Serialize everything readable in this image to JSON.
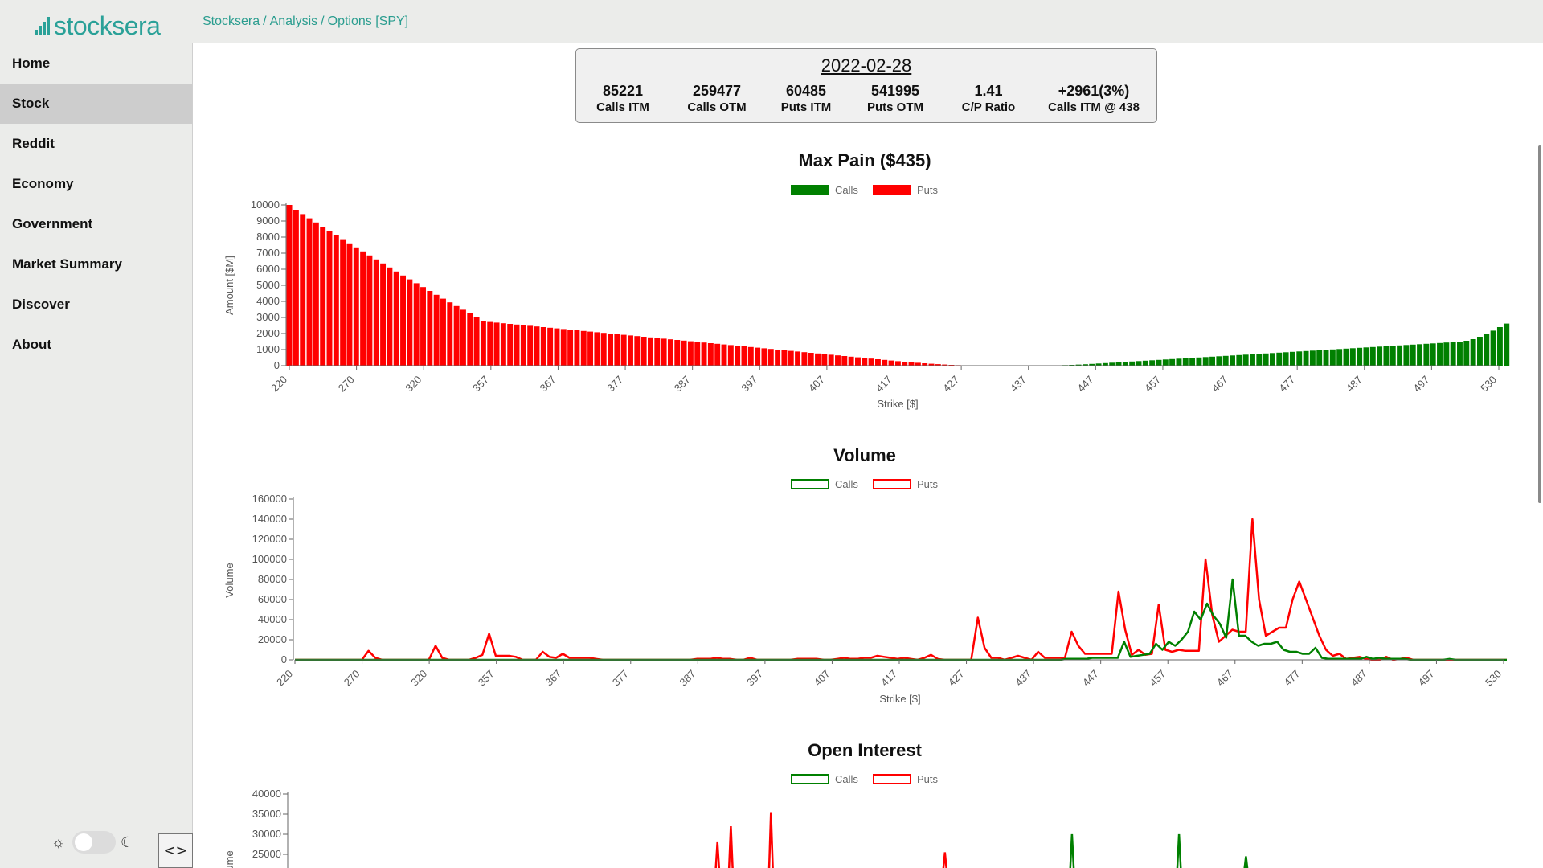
{
  "app": {
    "logo_text": "stocksera",
    "logo_icon": "bar-chart-icon"
  },
  "breadcrumb": [
    "Stocksera",
    "Analysis",
    "Options [SPY]"
  ],
  "sidebar": {
    "items": [
      {
        "label": "Home",
        "active": false
      },
      {
        "label": "Stock",
        "active": true
      },
      {
        "label": "Reddit",
        "active": false
      },
      {
        "label": "Economy",
        "active": false
      },
      {
        "label": "Government",
        "active": false
      },
      {
        "label": "Market Summary",
        "active": false
      },
      {
        "label": "Discover",
        "active": false
      },
      {
        "label": "About",
        "active": false
      }
    ]
  },
  "theme": {
    "light_icon": "sun-icon",
    "dark_icon": "moon-icon",
    "dark_mode": false
  },
  "code_button": {
    "icon": "code-icon",
    "label": "<>"
  },
  "summary": {
    "date": "2022-02-28",
    "stats": [
      {
        "value": "85221",
        "label": "Calls ITM"
      },
      {
        "value": "259477",
        "label": "Calls OTM"
      },
      {
        "value": "60485",
        "label": "Puts ITM"
      },
      {
        "value": "541995",
        "label": "Puts OTM"
      },
      {
        "value": "1.41",
        "label": "C/P Ratio"
      },
      {
        "value": "+2961(3%)",
        "label": "Calls ITM @ 438"
      }
    ]
  },
  "colors": {
    "calls": "#008000",
    "puts": "#ff0000",
    "accent": "#2aa198"
  },
  "chart_data": [
    {
      "type": "bar",
      "title": "Max Pain ($435)",
      "xlabel": "Strike [$]",
      "ylabel": "Amount [$M]",
      "ylim": [
        0,
        10000
      ],
      "yticks": [
        "0",
        "1000",
        "2000",
        "3000",
        "4000",
        "5000",
        "6000",
        "7000",
        "8000",
        "9000",
        "10000"
      ],
      "xtick_labels": [
        "220",
        "270",
        "320",
        "357",
        "367",
        "377",
        "387",
        "397",
        "407",
        "417",
        "427",
        "437",
        "447",
        "457",
        "467",
        "477",
        "487",
        "497",
        "530"
      ],
      "legend": [
        {
          "name": "Calls",
          "color": "#008000"
        },
        {
          "name": "Puts",
          "color": "#ff0000"
        }
      ],
      "bar_count": 183,
      "series": [
        {
          "name": "Puts",
          "values": [
            10000,
            9700,
            9430,
            9170,
            8910,
            8650,
            8390,
            8130,
            7870,
            7610,
            7360,
            7110,
            6860,
            6610,
            6360,
            6110,
            5860,
            5610,
            5370,
            5130,
            4890,
            4650,
            4410,
            4170,
            3940,
            3710,
            3480,
            3250,
            3020,
            2800,
            2720,
            2680,
            2640,
            2600,
            2560,
            2520,
            2480,
            2440,
            2400,
            2360,
            2320,
            2280,
            2240,
            2200,
            2160,
            2120,
            2080,
            2040,
            2000,
            1960,
            1920,
            1880,
            1840,
            1800,
            1760,
            1720,
            1680,
            1640,
            1600,
            1560,
            1520,
            1480,
            1440,
            1400,
            1360,
            1320,
            1280,
            1240,
            1200,
            1160,
            1120,
            1080,
            1040,
            1000,
            960,
            920,
            880,
            840,
            800,
            760,
            720,
            680,
            640,
            600,
            560,
            520,
            480,
            440,
            400,
            360,
            320,
            280,
            245,
            210,
            180,
            150,
            120,
            95,
            72,
            50,
            32,
            18,
            8,
            0,
            0,
            0,
            0,
            0,
            0,
            0,
            0,
            0,
            0,
            0,
            0,
            0,
            0,
            0,
            0,
            0,
            0,
            0,
            0,
            0,
            0,
            0,
            0,
            0,
            0,
            0,
            0,
            0,
            0,
            0,
            0,
            0,
            0,
            0,
            0,
            0,
            0,
            0,
            0,
            0,
            0,
            0,
            0,
            0,
            0,
            0,
            0,
            0,
            0,
            0,
            0,
            0,
            0,
            0,
            0,
            0,
            0,
            0,
            0,
            0,
            0,
            0,
            0,
            0,
            0,
            0,
            0,
            0,
            0,
            0,
            0,
            0,
            0,
            0,
            0,
            0,
            0,
            0,
            0
          ]
        },
        {
          "name": "Calls",
          "values": [
            0,
            0,
            0,
            0,
            0,
            0,
            0,
            0,
            0,
            0,
            0,
            0,
            0,
            0,
            0,
            0,
            0,
            0,
            0,
            0,
            0,
            0,
            0,
            0,
            0,
            0,
            0,
            0,
            0,
            0,
            0,
            0,
            0,
            0,
            0,
            0,
            0,
            0,
            0,
            0,
            0,
            0,
            0,
            0,
            0,
            0,
            0,
            0,
            0,
            0,
            0,
            0,
            0,
            0,
            0,
            0,
            0,
            0,
            0,
            0,
            0,
            0,
            0,
            0,
            0,
            0,
            0,
            0,
            0,
            0,
            0,
            0,
            0,
            0,
            0,
            0,
            0,
            0,
            0,
            0,
            0,
            0,
            0,
            0,
            0,
            0,
            0,
            0,
            0,
            0,
            0,
            0,
            0,
            0,
            0,
            0,
            0,
            0,
            0,
            0,
            0,
            0,
            0,
            0,
            0,
            0,
            0,
            0,
            0,
            0,
            0,
            0,
            0,
            5,
            12,
            22,
            35,
            50,
            68,
            88,
            110,
            135,
            160,
            185,
            210,
            235,
            260,
            285,
            310,
            335,
            360,
            385,
            410,
            435,
            460,
            485,
            510,
            535,
            560,
            585,
            610,
            635,
            660,
            685,
            710,
            735,
            760,
            785,
            810,
            835,
            860,
            885,
            910,
            935,
            960,
            985,
            1010,
            1035,
            1060,
            1085,
            1110,
            1135,
            1160,
            1185,
            1210,
            1235,
            1260,
            1285,
            1310,
            1335,
            1360,
            1385,
            1410,
            1440,
            1470,
            1500,
            1550,
            1650,
            1800,
            1980,
            2180,
            2400,
            2620,
            2800,
            2950
          ]
        }
      ]
    },
    {
      "type": "line",
      "title": "Volume",
      "xlabel": "Strike [$]",
      "ylabel": "Volume",
      "ylim": [
        0,
        160000
      ],
      "yticks": [
        "0",
        "20000",
        "40000",
        "60000",
        "80000",
        "100000",
        "120000",
        "140000",
        "160000"
      ],
      "xtick_labels": [
        "220",
        "270",
        "320",
        "357",
        "367",
        "377",
        "387",
        "397",
        "407",
        "417",
        "427",
        "437",
        "447",
        "457",
        "467",
        "477",
        "487",
        "497",
        "530"
      ],
      "legend": [
        {
          "name": "Calls",
          "color": "#008000"
        },
        {
          "name": "Puts",
          "color": "#ff0000"
        }
      ],
      "point_count": 183,
      "series": [
        {
          "name": "Puts",
          "values": [
            0,
            0,
            0,
            0,
            0,
            0,
            0,
            0,
            0,
            0,
            0,
            9000,
            2000,
            0,
            0,
            0,
            0,
            0,
            0,
            0,
            0,
            14000,
            2000,
            0,
            0,
            0,
            0,
            2000,
            5000,
            26000,
            4000,
            4000,
            4000,
            3000,
            0,
            0,
            0,
            8000,
            3000,
            2000,
            6000,
            2000,
            2000,
            2000,
            2000,
            1000,
            0,
            0,
            0,
            0,
            0,
            0,
            0,
            0,
            0,
            0,
            0,
            0,
            0,
            0,
            1000,
            1000,
            1000,
            2000,
            1000,
            1000,
            0,
            0,
            2000,
            0,
            0,
            0,
            0,
            0,
            0,
            1000,
            1000,
            1000,
            1000,
            0,
            0,
            1000,
            2000,
            1000,
            1000,
            2000,
            2000,
            4000,
            3000,
            2000,
            1000,
            2000,
            1000,
            0,
            2000,
            5000,
            1000,
            0,
            0,
            0,
            0,
            0,
            42000,
            12000,
            2000,
            2000,
            0,
            2000,
            4000,
            2000,
            0,
            8000,
            2000,
            2000,
            2000,
            2000,
            28000,
            14000,
            6000,
            6000,
            6000,
            6000,
            6000,
            68000,
            30000,
            5000,
            10000,
            5000,
            6000,
            55000,
            10000,
            8000,
            10000,
            9000,
            9000,
            9000,
            100000,
            45000,
            18000,
            24000,
            30000,
            28000,
            28000,
            140000,
            60000,
            24000,
            28000,
            32000,
            32000,
            60000,
            78000,
            60000,
            42000,
            24000,
            10000,
            4000,
            6000,
            1000,
            2000,
            3000,
            1000,
            0,
            0,
            3000,
            0,
            1000,
            2000,
            0,
            0,
            0,
            0,
            0,
            0,
            0,
            0,
            0,
            0,
            0,
            0,
            0,
            0,
            0
          ]
        },
        {
          "name": "Calls",
          "values": [
            0,
            0,
            0,
            0,
            0,
            0,
            0,
            0,
            0,
            0,
            0,
            0,
            0,
            0,
            0,
            0,
            0,
            0,
            0,
            0,
            0,
            0,
            0,
            0,
            0,
            0,
            0,
            0,
            0,
            0,
            0,
            0,
            0,
            0,
            0,
            0,
            0,
            0,
            0,
            0,
            0,
            0,
            0,
            0,
            0,
            0,
            0,
            0,
            0,
            0,
            0,
            0,
            0,
            0,
            0,
            0,
            0,
            0,
            0,
            0,
            0,
            0,
            0,
            0,
            0,
            0,
            0,
            0,
            0,
            0,
            0,
            0,
            0,
            0,
            0,
            0,
            0,
            0,
            0,
            0,
            0,
            0,
            0,
            0,
            0,
            0,
            0,
            0,
            0,
            0,
            0,
            0,
            0,
            0,
            0,
            0,
            0,
            0,
            0,
            0,
            0,
            0,
            0,
            0,
            0,
            0,
            0,
            0,
            0,
            0,
            0,
            0,
            0,
            0,
            0,
            0,
            0,
            0,
            0,
            0,
            0,
            1000,
            1000,
            1000,
            1000,
            2000,
            2000,
            2000,
            2000,
            2000,
            18000,
            3000,
            4000,
            5000,
            6000,
            16000,
            10000,
            18000,
            14000,
            20000,
            28000,
            48000,
            40000,
            56000,
            44000,
            36000,
            22000,
            80000,
            24000,
            24000,
            18000,
            14000,
            16000,
            16000,
            18000,
            10000,
            8000,
            8000,
            6000,
            6000,
            12000,
            2000,
            1000,
            1000,
            1000,
            1000,
            1000,
            1000,
            3000,
            1000,
            2000,
            1000,
            1000,
            1000,
            1000,
            0,
            0,
            0,
            0,
            0,
            0,
            1000,
            0,
            0,
            0,
            0,
            0,
            0,
            0,
            0,
            0
          ]
        }
      ]
    },
    {
      "type": "line",
      "title": "Open Interest",
      "ylabel": "Volume",
      "ylim": [
        0,
        40000
      ],
      "yticks": [
        "25000",
        "30000",
        "35000",
        "40000"
      ],
      "legend": [
        {
          "name": "Calls",
          "color": "#008000"
        },
        {
          "name": "Puts",
          "color": "#ff0000"
        }
      ],
      "visible_peaks": [
        {
          "series": "Puts",
          "index": 64,
          "value": 28000
        },
        {
          "series": "Puts",
          "index": 66,
          "value": 32000
        },
        {
          "series": "Puts",
          "index": 72,
          "value": 35500
        },
        {
          "series": "Puts",
          "index": 98,
          "value": 25500
        },
        {
          "series": "Calls",
          "index": 117,
          "value": 30000
        },
        {
          "series": "Calls",
          "index": 133,
          "value": 30000
        },
        {
          "series": "Calls",
          "index": 143,
          "value": 24500
        }
      ]
    }
  ]
}
